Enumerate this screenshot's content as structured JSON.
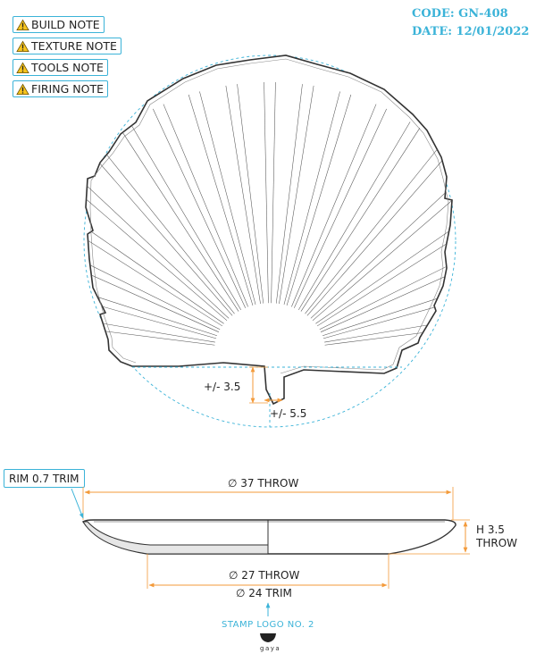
{
  "notes": [
    {
      "label": "BUILD NOTE"
    },
    {
      "label": "TEXTURE NOTE"
    },
    {
      "label": "TOOLS NOTE"
    },
    {
      "label": "FIRING NOTE"
    }
  ],
  "header": {
    "code": "CODE: GN-408",
    "date": "DATE: 12/01/2022"
  },
  "top_view": {
    "tol_vertical": "+/- 3.5",
    "tol_horizontal": "+/- 5.5"
  },
  "side_view": {
    "rim_label": "RIM 0.7 TRIM",
    "outer_diameter": "∅ 37 THROW",
    "height_line1": "H 3.5",
    "height_line2": "THROW",
    "foot_diameter": "∅ 27 THROW",
    "trim_diameter": "∅ 24 TRIM"
  },
  "stamp": {
    "label": "STAMP LOGO NO. 2",
    "brand": "gaya"
  },
  "colors": {
    "accent": "#3bb3d8",
    "dimension": "#f39a3a",
    "line": "#333333"
  }
}
